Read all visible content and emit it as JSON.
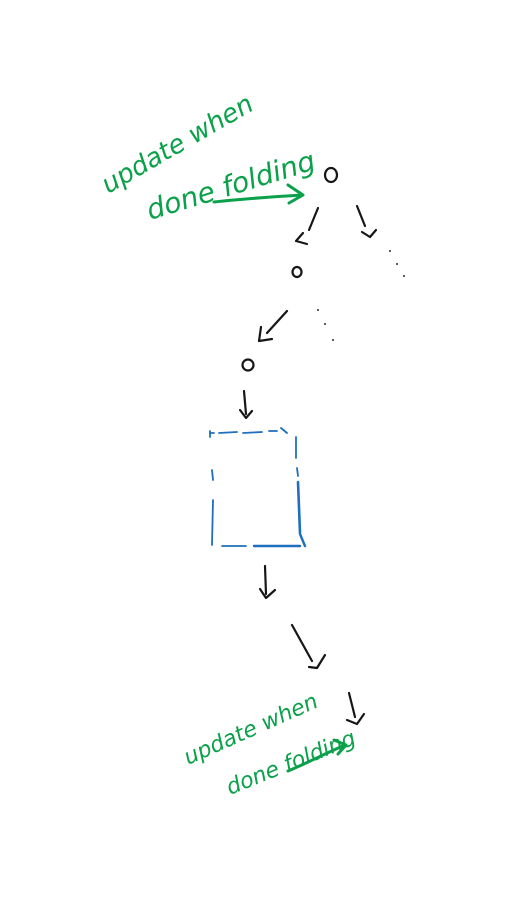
{
  "annotations": {
    "top_note": {
      "line1": "update when",
      "line2": "done folding"
    },
    "bottom_note": {
      "line1": "update when",
      "line2": "done folding"
    }
  },
  "colors": {
    "annotation": "#0aa14a",
    "ink": "#161616",
    "box": "#1f6fbf"
  },
  "icons": {
    "top_arrow": "green-arrow-right-icon",
    "bottom_arrow": "green-arrow-right-icon"
  }
}
